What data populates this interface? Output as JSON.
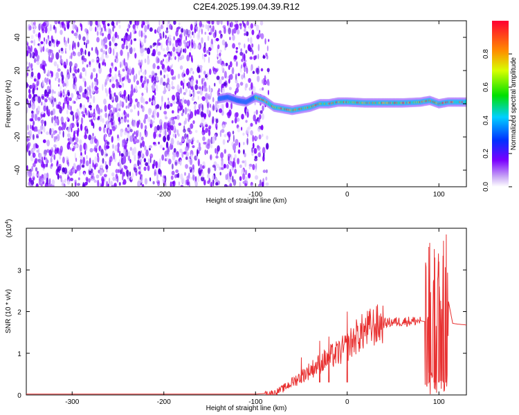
{
  "title": "C2E4.2025.199.04.39.R12",
  "chart_data": [
    {
      "type": "heatmap",
      "xlabel": "Height of straight line (km)",
      "ylabel": "Frequency (Hz)",
      "xlim": [
        -350,
        130
      ],
      "ylim": [
        -50,
        50
      ],
      "xticks": [
        "-300",
        "-200",
        "-100",
        "0",
        "100"
      ],
      "yticks": [
        "-40",
        "-20",
        "0",
        "20",
        "40"
      ],
      "colorbar": {
        "label": "Normalized spectral amplitude",
        "range": [
          0,
          1
        ],
        "ticks": [
          "0.0",
          "0.2",
          "0.4",
          "0.6",
          "0.8"
        ]
      },
      "noise_region": {
        "x_range": [
          -350,
          -100
        ],
        "y_range": [
          -50,
          50
        ]
      },
      "signal_track": {
        "x": [
          -140,
          -130,
          -120,
          -110,
          -100,
          -90,
          -80,
          -70,
          -60,
          -50,
          -40,
          -30,
          -20,
          -10,
          0,
          20,
          40,
          60,
          80,
          90,
          100,
          110,
          120,
          130
        ],
        "y": [
          3,
          4,
          2,
          1,
          4,
          2,
          -2,
          -3,
          -4,
          -3,
          -2,
          0,
          0,
          1,
          1,
          0.5,
          0.5,
          0.5,
          1,
          2,
          0,
          1,
          1,
          1
        ]
      }
    },
    {
      "type": "line",
      "xlabel": "Height of straight line (km)",
      "ylabel": "SNR (10 * v/v)",
      "y_multiplier": "(x10^4)",
      "multiplier_base": "(x10",
      "multiplier_exp": "4",
      "multiplier_close": ")",
      "xlim": [
        -350,
        130
      ],
      "ylim": [
        0,
        4
      ],
      "xticks": [
        "-300",
        "-200",
        "-100",
        "0",
        "100"
      ],
      "yticks": [
        "0",
        "1",
        "2",
        "3"
      ],
      "color": "#e83030",
      "series": [
        {
          "x": [
            -350,
            -100,
            -80,
            -70,
            -60,
            -50,
            -40,
            -30,
            -20,
            -10,
            0,
            10,
            20,
            30,
            40,
            50,
            60,
            70,
            80,
            85,
            90,
            95,
            100,
            105,
            110,
            115,
            120,
            130
          ],
          "y": [
            0.02,
            0.02,
            0.05,
            0.15,
            0.3,
            0.45,
            0.6,
            0.75,
            0.9,
            1.0,
            1.15,
            1.4,
            1.55,
            1.65,
            1.72,
            1.75,
            1.76,
            1.77,
            1.78,
            1.76,
            2.2,
            1.3,
            2.8,
            1.0,
            2.3,
            1.72,
            1.7,
            1.68
          ]
        }
      ],
      "peaks": [
        {
          "x": 90,
          "y": 3.65
        },
        {
          "x": 95,
          "y": 3.5
        },
        {
          "x": 100,
          "y": 3.2
        },
        {
          "x": 105,
          "y": 3.7
        },
        {
          "x": 108,
          "y": 3.85
        }
      ],
      "spikes": [
        {
          "x": 0,
          "y": 2.0
        },
        {
          "x": -50,
          "y": 0.9
        },
        {
          "x": -30,
          "y": 1.3
        },
        {
          "x": -20,
          "y": 1.4
        }
      ]
    }
  ]
}
